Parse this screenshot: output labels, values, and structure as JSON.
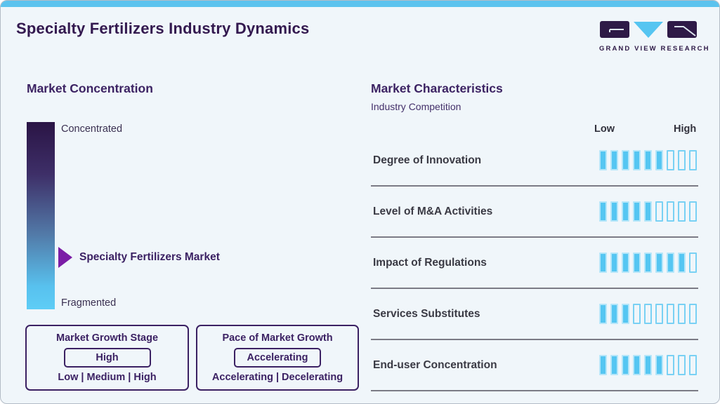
{
  "page": {
    "title": "Specialty Fertilizers Industry Dynamics"
  },
  "logo": {
    "brand": "GRAND VIEW RESEARCH"
  },
  "colors": {
    "accent_blue": "#55c6f2",
    "brand_purple": "#2e1a47",
    "heading_purple": "#3c2363",
    "arrow_purple": "#7b1da6",
    "topbar_blue": "#5cc3ee",
    "background": "#f0f6fa"
  },
  "market_concentration": {
    "heading": "Market Concentration",
    "scale_top": "Concentrated",
    "scale_bottom": "Fragmented",
    "pointer_label": "Specialty Fertilizers Market"
  },
  "growth_stage_box": {
    "title": "Market Growth Stage",
    "value": "High",
    "options": "Low | Medium | High"
  },
  "pace_box": {
    "title": "Pace of Market Growth",
    "value": "Accelerating",
    "options": "Accelerating | Decelerating"
  },
  "market_characteristics": {
    "heading": "Market Characteristics",
    "subheading": "Industry Competition",
    "scale_low": "Low",
    "scale_high": "High",
    "rows": [
      {
        "label": "Degree of Innovation",
        "filled": 6,
        "total": 9
      },
      {
        "label": "Level of M&A Activities",
        "filled": 5,
        "total": 9
      },
      {
        "label": "Impact of Regulations",
        "filled": 8,
        "total": 9
      },
      {
        "label": "Services Substitutes",
        "filled": 3,
        "total": 9
      },
      {
        "label": "End-user Concentration",
        "filled": 6,
        "total": 9
      }
    ]
  },
  "chart_data": {
    "type": "bar",
    "title": "Market Characteristics - Industry Competition",
    "categories": [
      "Degree of Innovation",
      "Level of M&A Activities",
      "Impact of Regulations",
      "Services Substitutes",
      "End-user Concentration"
    ],
    "values": [
      6,
      5,
      8,
      3,
      6
    ],
    "scale_max": 9,
    "xlabel": "Rating (Low to High)",
    "ylabel": "",
    "annotations": {
      "market_concentration_scale": [
        "Concentrated",
        "Fragmented"
      ],
      "market_position": "Specialty Fertilizers Market",
      "market_growth_stage": "High",
      "pace_of_market_growth": "Accelerating"
    }
  }
}
